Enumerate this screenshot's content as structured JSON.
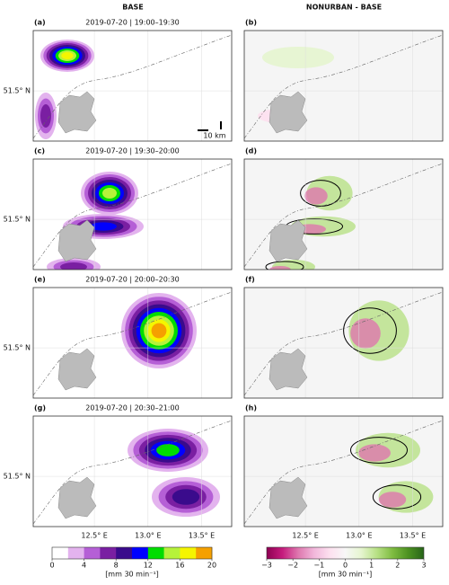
{
  "columns": [
    "BASE",
    "NONURBAN - BASE"
  ],
  "panels": [
    {
      "label": "(a)",
      "title": "2019-07-20 | 19:00–19:30"
    },
    {
      "label": "(b)"
    },
    {
      "label": "(c)",
      "title": "2019-07-20 | 19:30–20:00"
    },
    {
      "label": "(d)"
    },
    {
      "label": "(e)",
      "title": "2019-07-20 | 20:00–20:30"
    },
    {
      "label": "(f)"
    },
    {
      "label": "(g)",
      "title": "2019-07-20 | 20:30–21:00"
    },
    {
      "label": "(h)"
    }
  ],
  "map": {
    "xlim": [
      11.93,
      13.78
    ],
    "ylim": [
      51.1,
      51.98
    ],
    "xticks": [
      {
        "value": 12.5,
        "label": "12.5° E"
      },
      {
        "value": 13.0,
        "label": "13.0° E"
      },
      {
        "value": 13.5,
        "label": "13.5° E"
      }
    ],
    "yticks": [
      {
        "value": 51.5,
        "label": "51.5° N"
      }
    ],
    "scalebar": "10 km"
  },
  "colorbars": [
    {
      "unit": "[mm 30 min⁻¹]",
      "lim": [
        0,
        20
      ],
      "ticks": [
        0,
        4,
        8,
        12,
        16,
        20
      ],
      "colors": [
        "#ffffff",
        "#e3b3ee",
        "#b55fd6",
        "#7a1fa2",
        "#3a0b8c",
        "#0000ff",
        "#00dd00",
        "#b6f23a",
        "#f5f500",
        "#f5a000",
        "#ff0000"
      ]
    },
    {
      "unit": "[mm 30 min⁻¹]",
      "lim": [
        -3,
        3
      ],
      "ticks": [
        {
          "value": -3,
          "label": "−3"
        },
        {
          "value": -2,
          "label": "−2"
        },
        {
          "value": -1,
          "label": "−1"
        },
        0,
        1,
        2,
        3
      ],
      "colors": [
        "#8e0152",
        "#c51b7d",
        "#de77ae",
        "#f1b6da",
        "#fde0ef",
        "#f7f7f7",
        "#e6f5d0",
        "#b8e186",
        "#7fbc41",
        "#4d9221",
        "#276419"
      ]
    }
  ]
}
